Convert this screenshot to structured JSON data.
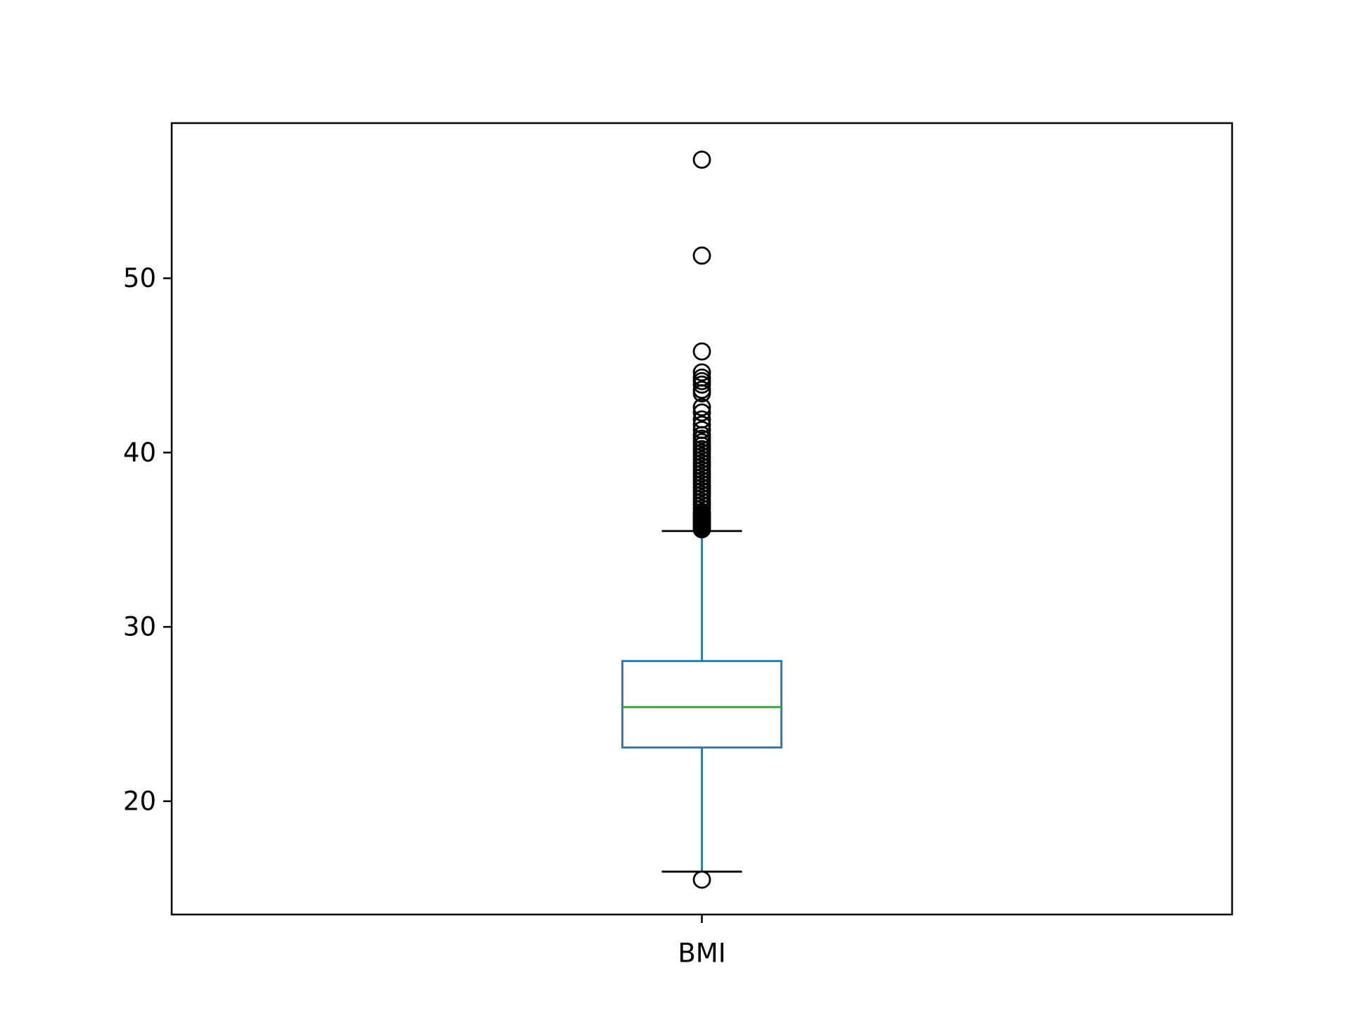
{
  "chart_data": {
    "type": "box",
    "categories": [
      "BMI"
    ],
    "ylim": [
      13.5,
      58.9
    ],
    "yticks": [
      20,
      30,
      40,
      50
    ],
    "grid": false,
    "box": {
      "category": "BMI",
      "whisker_low": 15.96,
      "q1": 23.08,
      "median": 25.4,
      "q3": 28.04,
      "whisker_high": 35.5,
      "outliers": [
        15.5,
        35.6,
        35.7,
        35.8,
        35.9,
        36.0,
        36.1,
        36.2,
        36.3,
        36.4,
        36.5,
        36.6,
        36.8,
        37.0,
        37.2,
        37.4,
        37.6,
        37.8,
        38.0,
        38.2,
        38.4,
        38.6,
        38.8,
        39.0,
        39.2,
        39.4,
        39.6,
        39.8,
        40.0,
        40.2,
        40.4,
        40.6,
        40.8,
        41.0,
        41.3,
        41.6,
        41.9,
        42.3,
        42.6,
        43.4,
        43.6,
        43.9,
        44.1,
        44.3,
        44.6,
        45.8,
        51.3,
        56.8
      ]
    },
    "colors": {
      "box": "#1f77b4",
      "median": "#2ca02c",
      "caps": "#000000",
      "outliers": "#000000",
      "frame": "#000000"
    }
  }
}
